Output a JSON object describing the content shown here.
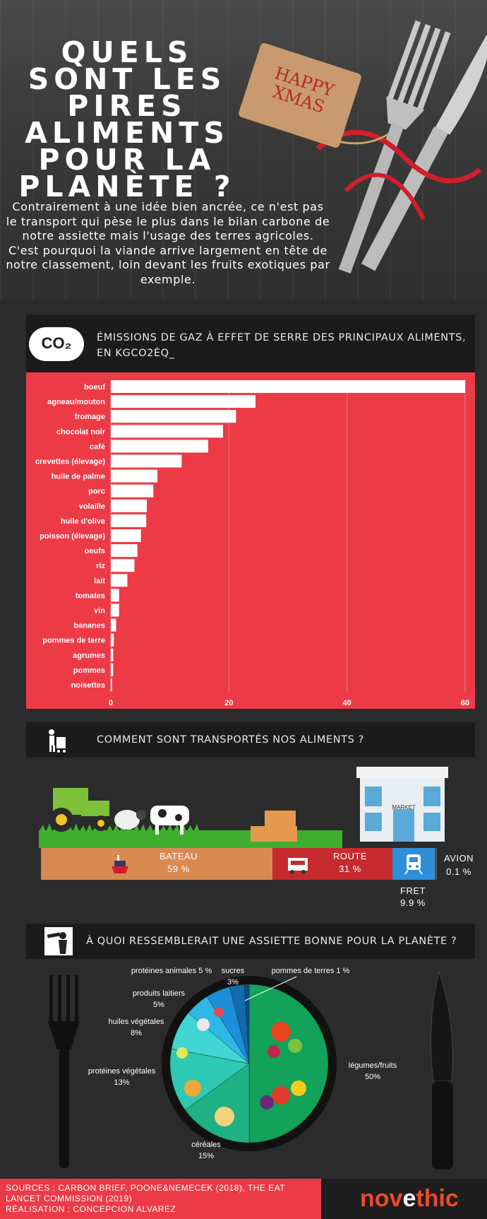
{
  "hero": {
    "title": "QUELS SONT LES PIRES ALIMENTS POUR LA PLANÈTE ?",
    "text": "Contrairement à une idée bien ancrée, ce n'est pas le transport qui pèse le plus dans le bilan carbone de notre assiette mais l'usage des terres agricoles. C'est pourquoi la viande arrive largement en tête de notre classement, loin devant les fruits exotiques par exemple.",
    "tag_text": "HAPPY XMAS"
  },
  "emissions": {
    "icon_text": "CO₂",
    "title": "ÉMISSIONS DE GAZ À EFFET DE SERRE DES PRINCIPAUX ALIMENTS, EN KGCO2ÉQ_"
  },
  "chart_data": {
    "type": "bar",
    "orientation": "horizontal",
    "categories": [
      "boeuf",
      "agneau/mouton",
      "fromage",
      "chocolat noir",
      "café",
      "crevettes (élevage)",
      "huile de palme",
      "porc",
      "volaille",
      "huile d'olive",
      "poisson (élevage)",
      "oeufs",
      "riz",
      "lait",
      "tomates",
      "vin",
      "bananes",
      "pommes de terre",
      "agrumes",
      "pommes",
      "noisettes"
    ],
    "values": [
      60,
      24.5,
      21.2,
      19,
      16.5,
      12,
      7.9,
      7.2,
      6.1,
      6,
      5.1,
      4.5,
      4,
      2.8,
      1.4,
      1.4,
      0.9,
      0.5,
      0.4,
      0.4,
      0.2
    ],
    "xlim": [
      0,
      60
    ],
    "xticks": [
      "0",
      "20",
      "40",
      "60"
    ],
    "grid": true,
    "bar_color": "#ffffff",
    "background": "#ec3a47"
  },
  "transport": {
    "title": "COMMENT SONT TRANSPORTÉS NOS ALIMENTS ?",
    "market_sign": "MARKET",
    "segments": [
      {
        "label": "BATEAU",
        "value": "59 %",
        "color": "#d98a52"
      },
      {
        "label": "ROUTE",
        "value": "31 %",
        "color": "#c62a2f"
      },
      {
        "label": "FRET",
        "value": "9.9 %",
        "color": "#2c8fd8"
      },
      {
        "label": "AVION",
        "value": "0.1 %",
        "color": "#555555"
      }
    ]
  },
  "plate": {
    "title": "À QUOI RESSEMBLERAIT UNE ASSIETTE BONNE POUR LA PLANÈTE ?",
    "slices": [
      {
        "label": "légumes/fruits",
        "value": "50%",
        "color": "#12a25a"
      },
      {
        "label": "céréales",
        "value": "15%",
        "color": "#1fb184"
      },
      {
        "label": "protéines végétales",
        "value": "13%",
        "color": "#2ec9b2"
      },
      {
        "label": "huiles végétales",
        "value": "8%",
        "color": "#3fd6d4"
      },
      {
        "label": "produits laitiers",
        "value": "5%",
        "color": "#2fb7e6"
      },
      {
        "label": "protéines animales 5 %",
        "value": "",
        "color": "#1b8fd8"
      },
      {
        "label": "sucres",
        "value": "3%",
        "color": "#146ab0"
      },
      {
        "label": "pommes de terres 1 %",
        "value": "",
        "color": "#0d4a86"
      }
    ]
  },
  "footer": {
    "line1": "SOURCES : CARBON BRIEF, POONE&NEMECEK (2018), THE EAT",
    "line2": "LANCET COMMISSION (2019)",
    "line3": "RÉALISATION : CONCEPCION ALVAREZ",
    "brand_pre": "nov",
    "brand_mid": "e",
    "brand_post": "thic"
  }
}
